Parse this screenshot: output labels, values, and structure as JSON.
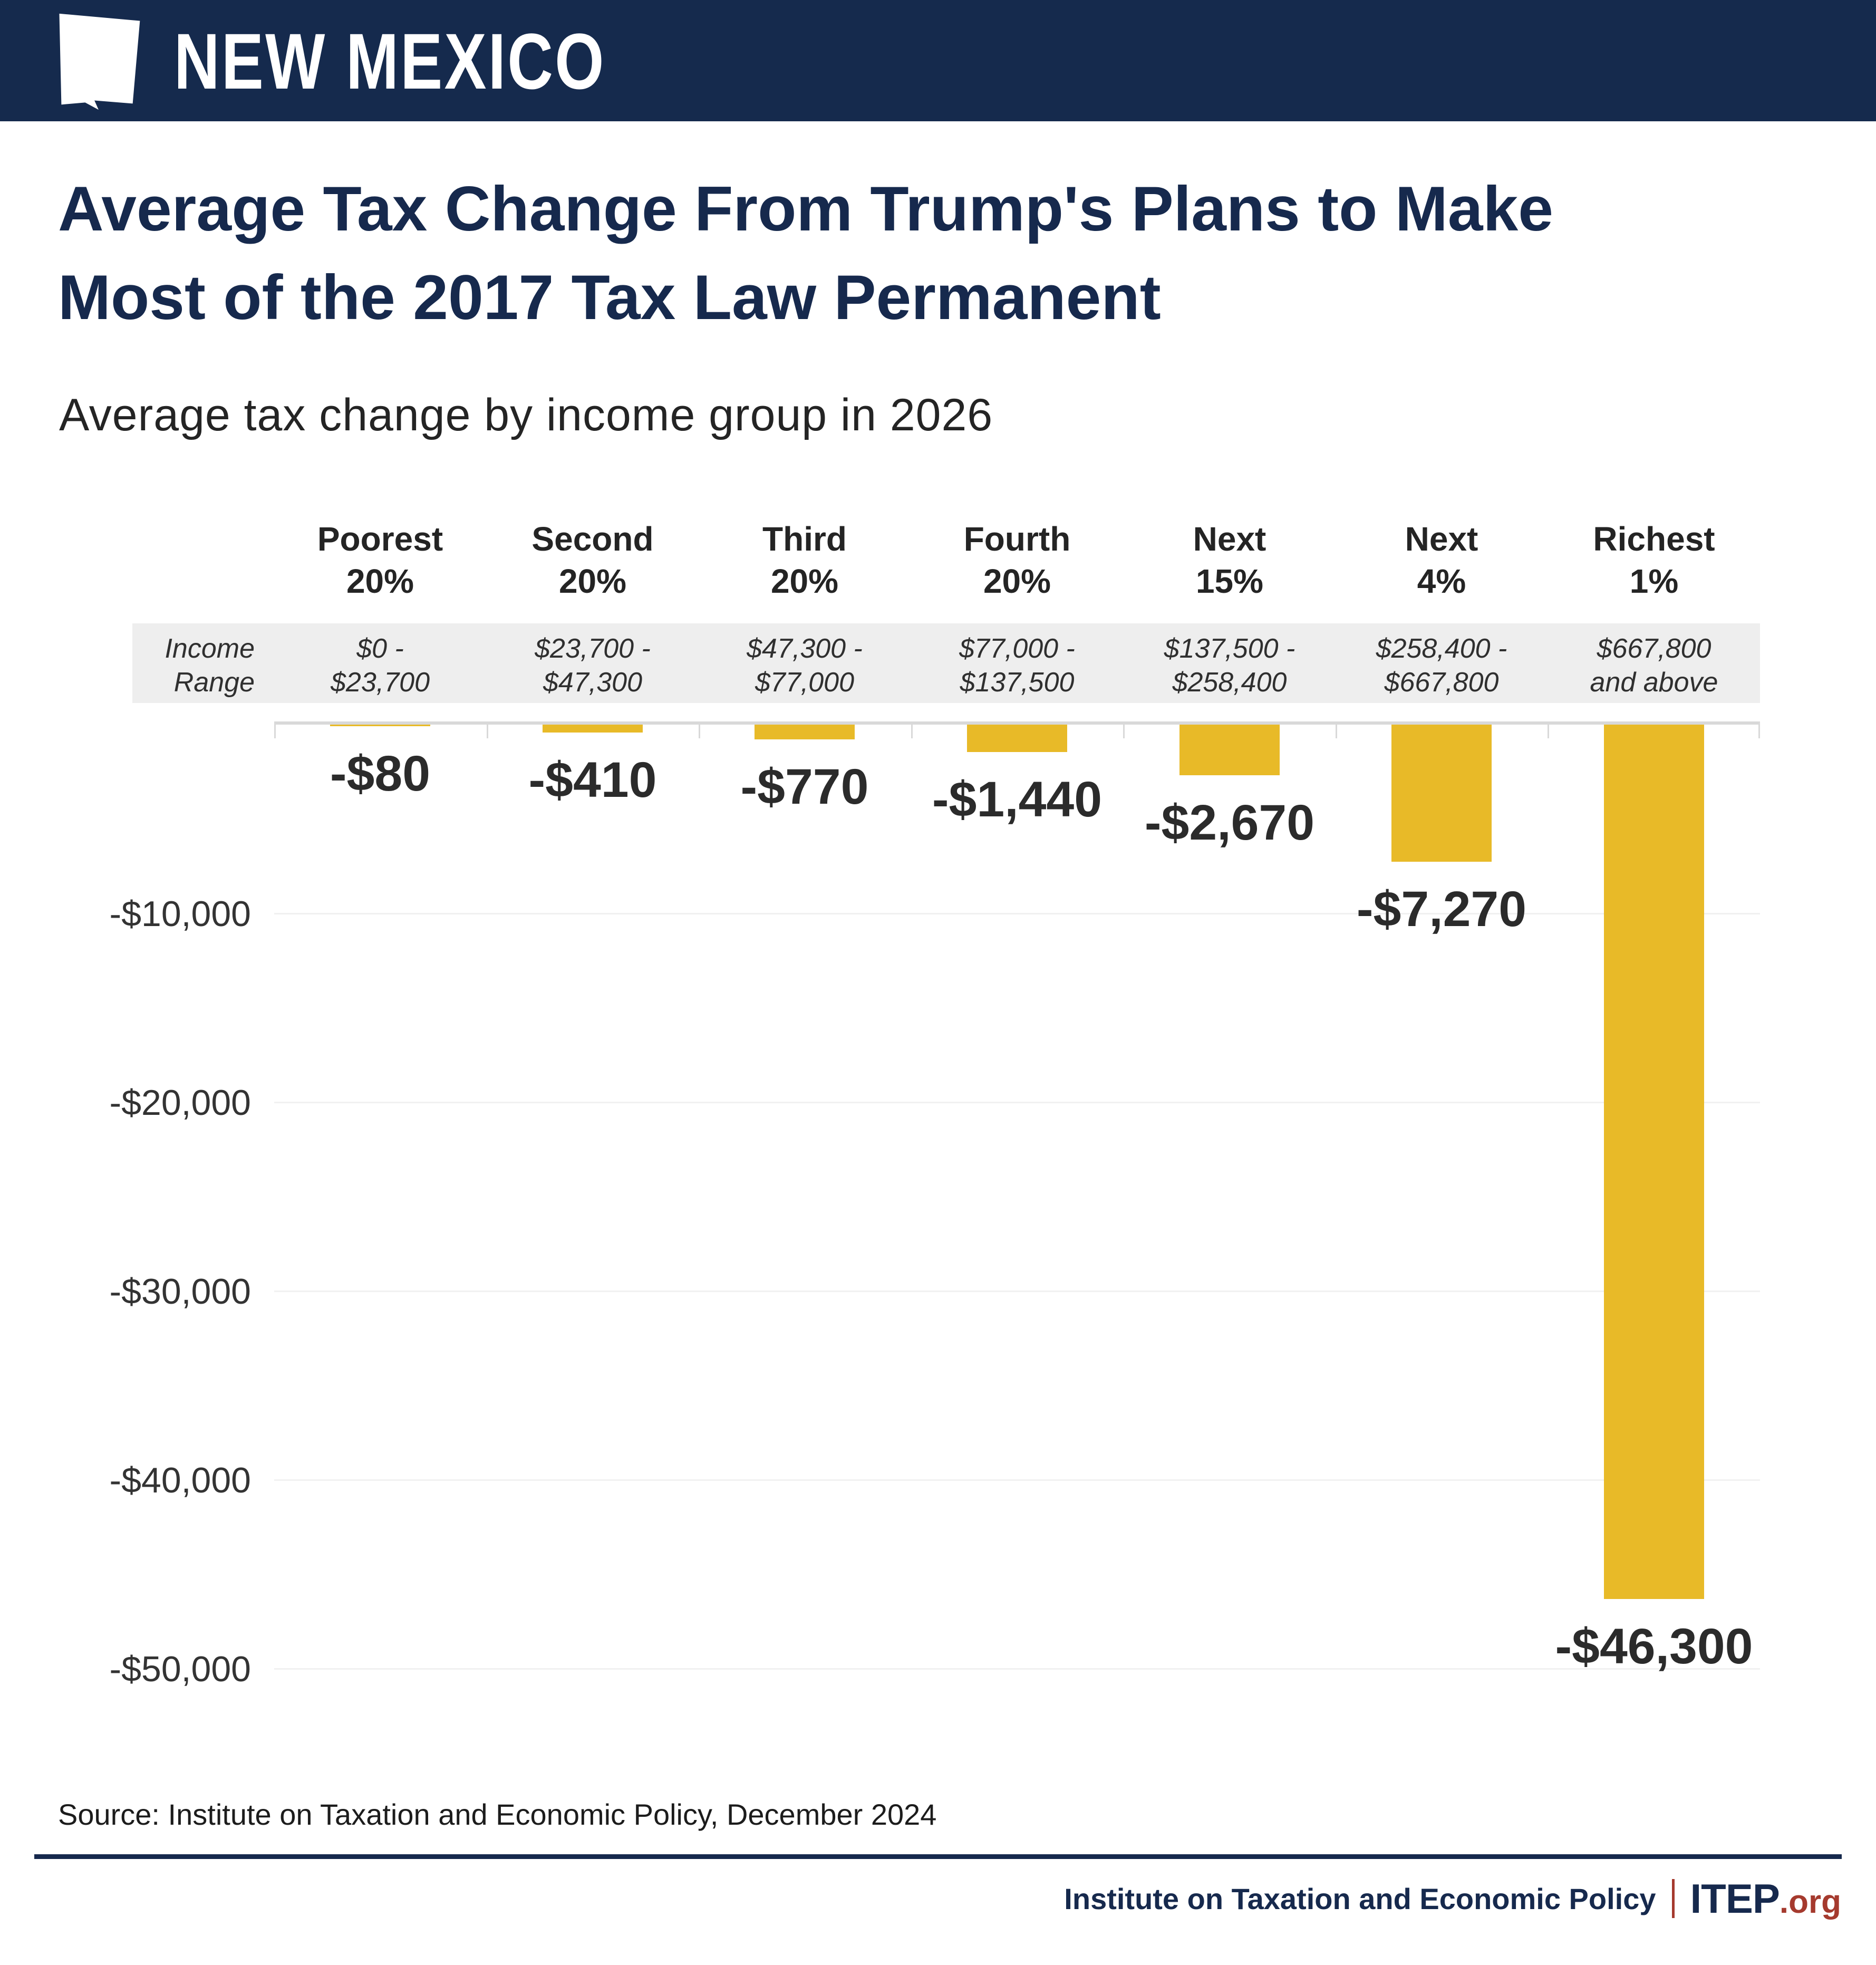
{
  "header": {
    "state_name": "NEW MEXICO",
    "state_icon": "new-mexico-state-silhouette-icon"
  },
  "title": {
    "full": "Average Tax Change From Trump's Plans to Make Most of the 2017 Tax Law Permanent",
    "line1": "Average Tax Change From Trump's Plans to Make",
    "line2": "Most of the 2017 Tax Law Permanent"
  },
  "subtitle": "Average tax change by income group in 2026",
  "income_range_label": "Income\nRange",
  "chart_data": {
    "type": "bar",
    "title": "Average Tax Change From Trump's Plans to Make Most of the 2017 Tax Law Permanent",
    "subtitle": "Average tax change by income group in 2026",
    "categories": [
      "Poorest\n20%",
      "Second\n20%",
      "Third\n20%",
      "Fourth\n20%",
      "Next\n15%",
      "Next\n4%",
      "Richest\n1%"
    ],
    "income_ranges": [
      "$0 -\n$23,700",
      "$23,700 -\n$47,300",
      "$47,300 -\n$77,000",
      "$77,000 -\n$137,500",
      "$137,500 -\n$258,400",
      "$258,400 -\n$667,800",
      "$667,800\nand above"
    ],
    "values": [
      -80,
      -410,
      -770,
      -1440,
      -2670,
      -7270,
      -46300
    ],
    "value_labels": [
      "-$80",
      "-$410",
      "-$770",
      "-$1,440",
      "-$2,670",
      "-$7,270",
      "-$46,300"
    ],
    "y_tick_labels": [
      "-$10,000",
      "-$20,000",
      "-$30,000",
      "-$40,000",
      "-$50,000"
    ],
    "y_tick_values": [
      -10000,
      -20000,
      -30000,
      -40000,
      -50000
    ],
    "ylim": [
      -50000,
      0
    ],
    "xlabel": "",
    "ylabel": "",
    "grid": "horizontal, light gray",
    "legend": "none",
    "bar_color": "#e8ba28"
  },
  "source": "Source: Institute on Taxation and Economic Policy, December 2024",
  "footer": {
    "org": "Institute on Taxation and Economic Policy",
    "logo_main": "ITEP",
    "logo_suffix": ".org"
  },
  "colors": {
    "header_bg": "#152a4d",
    "title_navy": "#16294d",
    "bar_yellow": "#e8ba28",
    "accent_red": "#a53a2e",
    "band_gray": "#eeeeee",
    "axis_gray": "#d9d9d9",
    "grid_gray": "#f1f1f1"
  }
}
